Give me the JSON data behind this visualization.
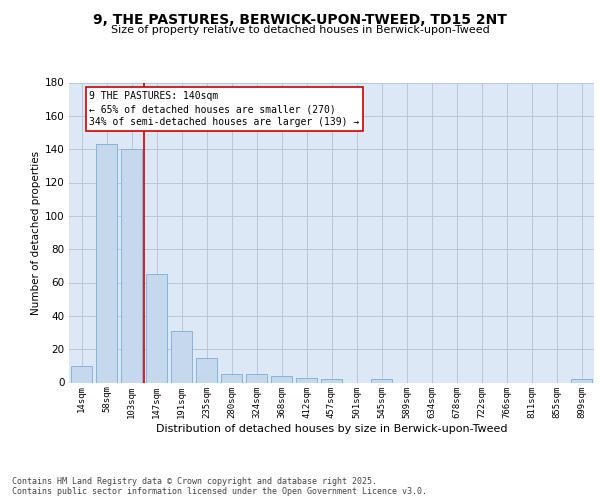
{
  "title1": "9, THE PASTURES, BERWICK-UPON-TWEED, TD15 2NT",
  "title2": "Size of property relative to detached houses in Berwick-upon-Tweed",
  "xlabel": "Distribution of detached houses by size in Berwick-upon-Tweed",
  "ylabel": "Number of detached properties",
  "footer1": "Contains HM Land Registry data © Crown copyright and database right 2025.",
  "footer2": "Contains public sector information licensed under the Open Government Licence v3.0.",
  "bar_labels": [
    "14sqm",
    "58sqm",
    "103sqm",
    "147sqm",
    "191sqm",
    "235sqm",
    "280sqm",
    "324sqm",
    "368sqm",
    "412sqm",
    "457sqm",
    "501sqm",
    "545sqm",
    "589sqm",
    "634sqm",
    "678sqm",
    "722sqm",
    "766sqm",
    "811sqm",
    "855sqm",
    "899sqm"
  ],
  "bar_values": [
    10,
    143,
    140,
    65,
    31,
    15,
    5,
    5,
    4,
    3,
    2,
    0,
    2,
    0,
    0,
    0,
    0,
    0,
    0,
    0,
    2
  ],
  "bar_color": "#c5d8ee",
  "bar_edge_color": "#7bafd4",
  "annotation_text": "9 THE PASTURES: 140sqm\n← 65% of detached houses are smaller (270)\n34% of semi-detached houses are larger (139) →",
  "annotation_box_color": "#ffffff",
  "annotation_box_edge": "#cc0000",
  "red_line_color": "#cc0000",
  "ylim": [
    0,
    180
  ],
  "yticks": [
    0,
    20,
    40,
    60,
    80,
    100,
    120,
    140,
    160,
    180
  ],
  "grid_color": "#b8c8d8",
  "bg_color": "#ffffff",
  "plot_bg_color": "#dce8f5"
}
